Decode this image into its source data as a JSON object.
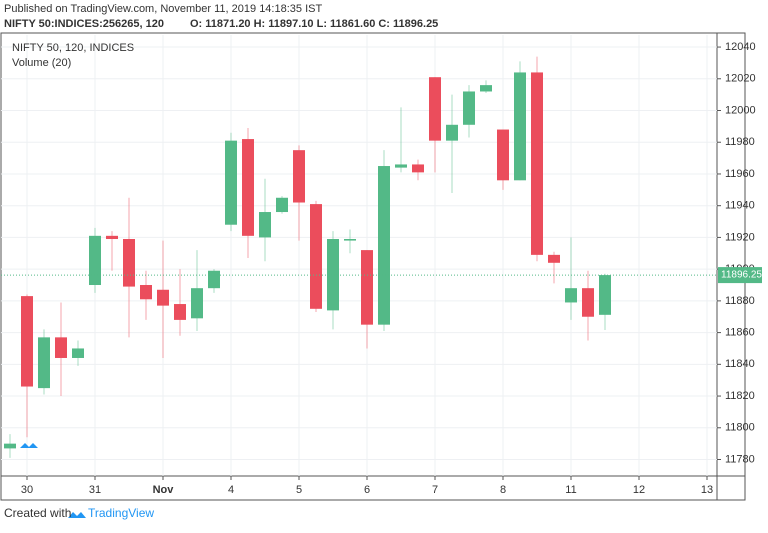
{
  "header": {
    "published": "Published on TradingView.com, November 11, 2019 14:18:35 IST",
    "symbol": "NIFTY 50:INDICES:256265, 120",
    "quote": "O: 11871.20 H: 11897.10 L: 11861.60 C: 11896.25"
  },
  "footer": {
    "created": "Created with",
    "brand": "TradingView"
  },
  "chart_data": {
    "type": "candlestick",
    "legend": [
      "NIFTY 50, 120, INDICES",
      "Volume (20)"
    ],
    "categories": [
      null,
      "30",
      null,
      null,
      null,
      "31",
      null,
      null,
      null,
      "Nov",
      null,
      null,
      null,
      "4",
      null,
      null,
      null,
      "5",
      null,
      null,
      null,
      "6",
      null,
      null,
      null,
      "7",
      null,
      null,
      null,
      "8",
      null,
      null,
      null,
      "11",
      null,
      null,
      null,
      "12",
      null,
      null,
      null,
      "13"
    ],
    "open": [
      11787,
      11883,
      11825,
      11857,
      11844,
      11890,
      11921,
      11919,
      11890,
      11887,
      11878,
      11869,
      11888,
      11928,
      11982,
      11920,
      11936,
      11975,
      11941,
      11874,
      11918,
      11912,
      11865,
      11964,
      11966,
      12021,
      11981,
      11991,
      12012,
      11988,
      11956,
      12024,
      11909,
      11879,
      11888,
      11871.2,
      null,
      null,
      null,
      null,
      null,
      null
    ],
    "high": [
      11796,
      11884,
      11862,
      11879,
      11855,
      11926,
      11924,
      11945,
      11899,
      11918,
      11900,
      11912,
      11900,
      11986,
      11989,
      11957,
      11946,
      11978,
      11943,
      11924,
      11925,
      11912,
      11975,
      12002,
      11969,
      12021,
      12010,
      12016,
      12019,
      11988,
      12031,
      12034,
      11911,
      11920,
      11899,
      11897.1,
      null,
      null,
      null,
      null,
      null,
      null
    ],
    "low": [
      11781,
      11794,
      11821,
      11820,
      11839,
      11885,
      11899,
      11857,
      11868,
      11844,
      11858,
      11861,
      11885,
      11924,
      11907,
      11905,
      11935,
      11918,
      11873,
      11862,
      11910,
      11850,
      11861,
      11961,
      11956,
      11961,
      11948,
      11983,
      12011,
      11950,
      11956,
      11905,
      11891,
      11868,
      11855,
      11861.6,
      null,
      null,
      null,
      null,
      null,
      null
    ],
    "close": [
      11790,
      11826,
      11857,
      11844,
      11850,
      11921,
      11919,
      11889,
      11881,
      11877,
      11868,
      11888,
      11899,
      11981,
      11921,
      11936,
      11945,
      11942,
      11875,
      11919,
      11919,
      11865,
      11965,
      11966,
      11961,
      11981,
      11991,
      12012,
      12016,
      11956,
      12024,
      11909,
      11904,
      11888,
      11870,
      11896.25,
      null,
      null,
      null,
      null,
      null,
      null
    ],
    "up_color": "#53b987",
    "down_color": "#eb4d5c",
    "last_price": 11896.25,
    "ylim": [
      11769.6,
      12047.6
    ],
    "yticks": [
      11780,
      11800,
      11820,
      11840,
      11860,
      11880,
      11900,
      11920,
      11940,
      11960,
      11980,
      12000,
      12020,
      12040
    ],
    "grid": true
  }
}
